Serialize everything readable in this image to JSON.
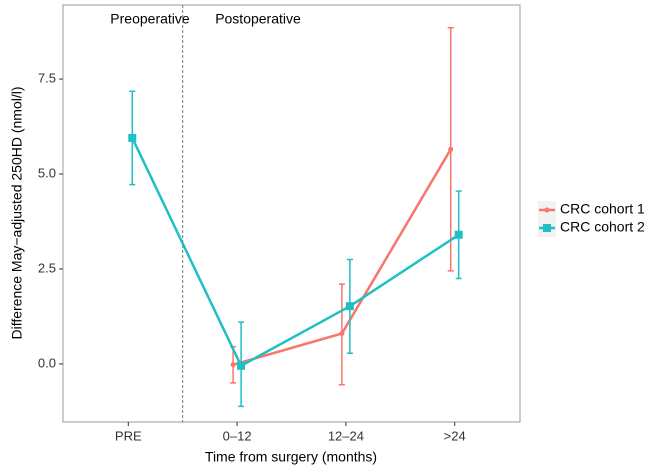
{
  "chart_data": {
    "type": "line",
    "x_label": "Time from surgery (months)",
    "y_label": "Difference May−adjusted 250HD (nmol/l)",
    "annotations": [
      "Preoperative",
      "Postoperative"
    ],
    "categories": [
      "PRE",
      "0–12",
      "12–24",
      ">24"
    ],
    "series": [
      {
        "name": "CRC cohort 1",
        "color": "#F8766D",
        "marker": "circle",
        "values": [
          null,
          -0.02,
          0.8,
          5.65
        ],
        "lower": [
          null,
          -0.5,
          -0.55,
          2.45
        ],
        "upper": [
          null,
          0.45,
          2.1,
          8.85
        ]
      },
      {
        "name": "CRC cohort 2",
        "color": "#1FBFC4",
        "marker": "square",
        "values": [
          5.95,
          -0.05,
          1.52,
          3.4
        ],
        "lower": [
          4.72,
          -1.12,
          0.28,
          2.25
        ],
        "upper": [
          7.18,
          1.1,
          2.75,
          4.55
        ]
      }
    ],
    "ylim": [
      -1.53,
      9.45
    ],
    "yticks": [
      {
        "value": 0,
        "label": "0.0"
      },
      2.5,
      {
        "value": 5,
        "label": "5.0"
      },
      7.5
    ],
    "grid": false,
    "legend": "right"
  }
}
